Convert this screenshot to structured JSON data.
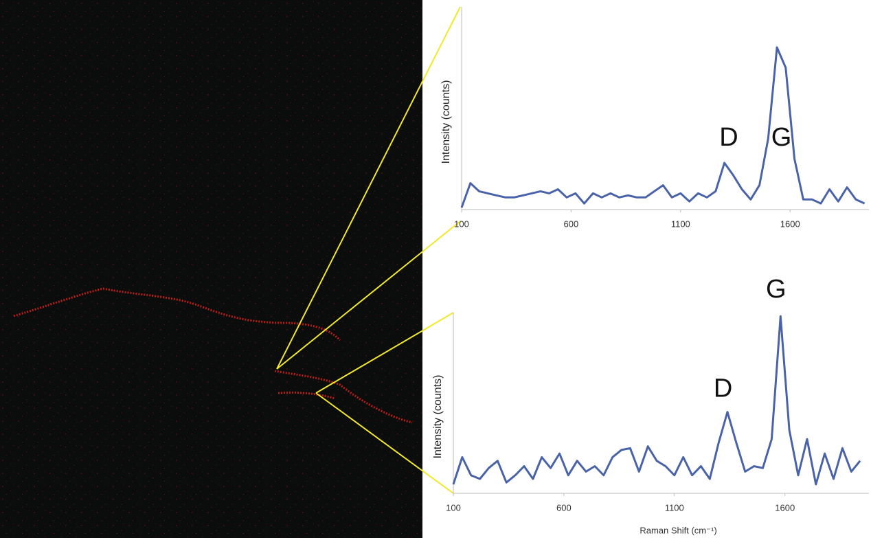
{
  "chart_data": [
    {
      "type": "line",
      "y_label": "Intensity (counts)",
      "annotations": [
        "D",
        "G"
      ],
      "color": "#4a63a8",
      "x": [
        100,
        140,
        180,
        220,
        260,
        300,
        340,
        380,
        420,
        460,
        500,
        540,
        580,
        620,
        660,
        700,
        740,
        780,
        820,
        860,
        900,
        940,
        980,
        1020,
        1060,
        1100,
        1140,
        1180,
        1220,
        1260,
        1300,
        1340,
        1380,
        1420,
        1460,
        1500,
        1540,
        1580,
        1620,
        1660,
        1700,
        1740,
        1780,
        1820,
        1860,
        1900,
        1940
      ],
      "values": [
        1,
        13,
        9,
        8,
        7,
        6,
        6,
        7,
        8,
        9,
        8,
        10,
        6,
        8,
        3,
        8,
        6,
        8,
        6,
        7,
        6,
        6,
        9,
        12,
        6,
        8,
        4,
        8,
        6,
        9,
        23,
        17,
        10,
        5,
        12,
        35,
        80,
        70,
        25,
        5,
        5,
        3,
        10,
        4,
        11,
        5,
        3
      ],
      "xlim": [
        100,
        1960
      ],
      "ylim": [
        0,
        100
      ],
      "xticks": [
        100,
        600,
        1100,
        1600
      ]
    },
    {
      "type": "line",
      "y_label": "Intensity (counts)",
      "x_label": "Raman Shift (cm⁻¹)",
      "annotations": [
        "D",
        "G"
      ],
      "color": "#4a63a8",
      "x": [
        100,
        140,
        180,
        220,
        260,
        300,
        340,
        380,
        420,
        460,
        500,
        540,
        580,
        620,
        660,
        700,
        740,
        780,
        820,
        860,
        900,
        940,
        980,
        1020,
        1060,
        1100,
        1140,
        1180,
        1220,
        1260,
        1300,
        1340,
        1380,
        1420,
        1460,
        1500,
        1540,
        1580,
        1620,
        1660,
        1700,
        1740,
        1780,
        1820,
        1860,
        1900,
        1940
      ],
      "values": [
        5,
        20,
        10,
        8,
        14,
        18,
        6,
        10,
        15,
        8,
        20,
        14,
        22,
        10,
        18,
        12,
        15,
        10,
        20,
        24,
        25,
        12,
        26,
        18,
        15,
        10,
        20,
        10,
        15,
        8,
        28,
        45,
        28,
        12,
        15,
        14,
        30,
        98,
        35,
        10,
        30,
        5,
        22,
        8,
        25,
        12,
        18
      ],
      "xlim": [
        100,
        1980
      ],
      "ylim": [
        0,
        100
      ],
      "xticks": [
        100,
        600,
        1100,
        1600
      ]
    }
  ]
}
